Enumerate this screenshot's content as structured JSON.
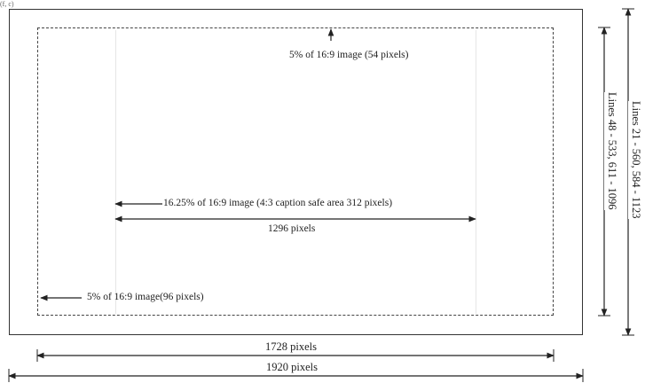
{
  "corner_mark": "(f, c)",
  "labels": {
    "top_margin": "5% of 16:9 image  (54 pixels)",
    "caption_safe": "16.25% of 16:9 image (4:3 caption safe area 312 pixels)",
    "caption_width": "1296 pixels",
    "side_margin": "5% of 16:9 image(96 pixels)",
    "safe_width": "1728 pixels",
    "full_width": "1920 pixels",
    "safe_lines": "Lines 48 - 533, 611 - 1096",
    "full_lines": "Lines 21 - 560, 584 - 1123"
  }
}
